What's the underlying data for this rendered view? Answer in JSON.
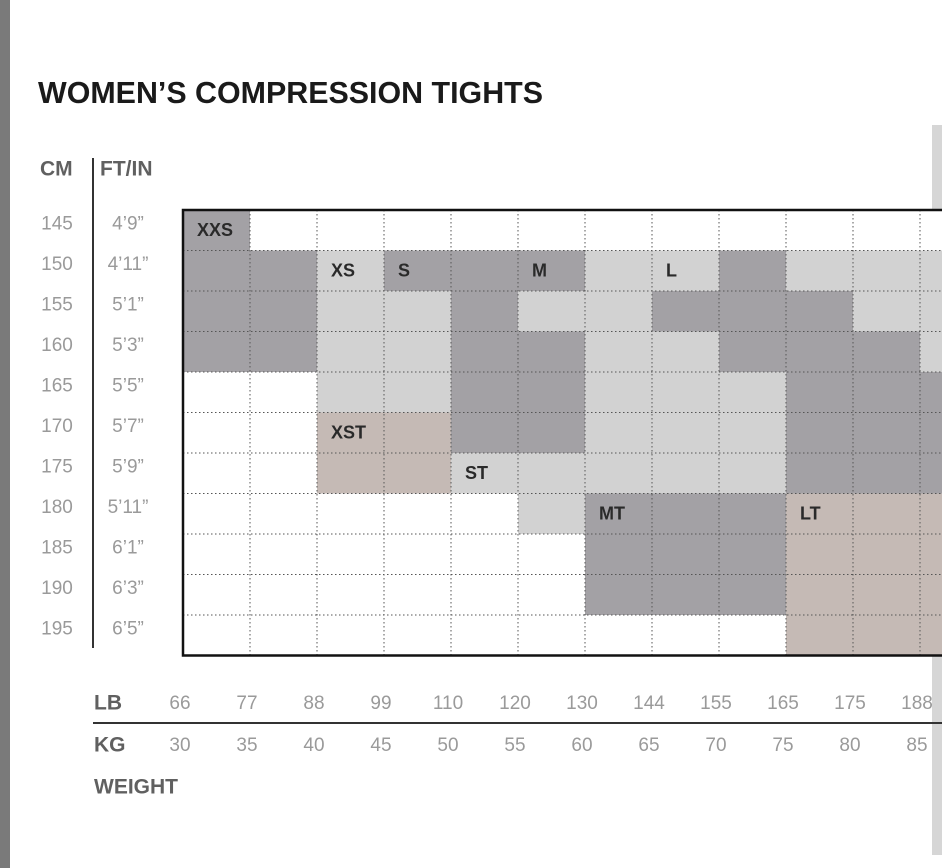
{
  "title": "WOMEN’S COMPRESSION TIGHTS",
  "height_headers": [
    "CM",
    "FT/IN"
  ],
  "cm": [
    "145",
    "150",
    "155",
    "160",
    "165",
    "170",
    "175",
    "180",
    "185",
    "190",
    "195"
  ],
  "ft_in": [
    "4’9”",
    "4’11”",
    "5’1”",
    "5’3”",
    "5’5”",
    "5’7”",
    "5’9”",
    "5’11”",
    "6’1”",
    "6’3”",
    "6’5”"
  ],
  "size_labels": [
    "XXS",
    "XS",
    "S",
    "M",
    "L",
    "XST",
    "ST",
    "MT",
    "LT"
  ],
  "lb_label": "LB",
  "lb": [
    "66",
    "77",
    "88",
    "99",
    "110",
    "120",
    "130",
    "144",
    "155",
    "165",
    "175",
    "188"
  ],
  "kg_label": "KG",
  "kg": [
    "30",
    "35",
    "40",
    "45",
    "50",
    "55",
    "60",
    "65",
    "70",
    "75",
    "80",
    "85"
  ],
  "weight_label": "WEIGHT"
}
